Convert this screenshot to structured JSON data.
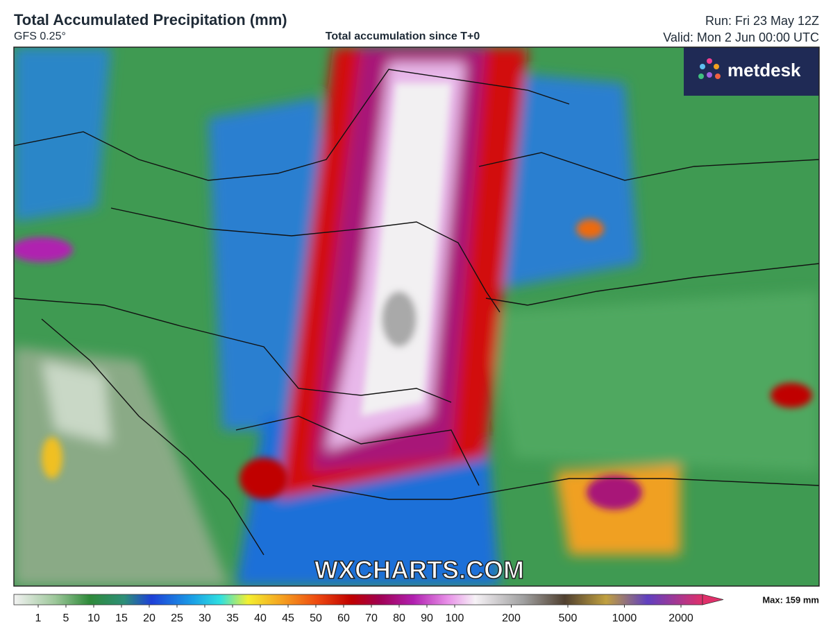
{
  "header": {
    "title": "Total Accumulated Precipitation (mm)",
    "model": "GFS 0.25°",
    "subtitle": "Total accumulation since T+0",
    "run": "Run: Fri 23 May 12Z",
    "valid": "Valid: Mon 2 Jun 00:00 UTC"
  },
  "logo": "metdesk",
  "watermark": "WXCHARTS.COM",
  "colorbar": {
    "ticks": [
      1,
      5,
      10,
      15,
      20,
      25,
      30,
      35,
      40,
      45,
      50,
      60,
      70,
      80,
      90,
      100,
      200,
      500,
      1000,
      2000
    ],
    "max_label": "Max: 159 mm"
  }
}
